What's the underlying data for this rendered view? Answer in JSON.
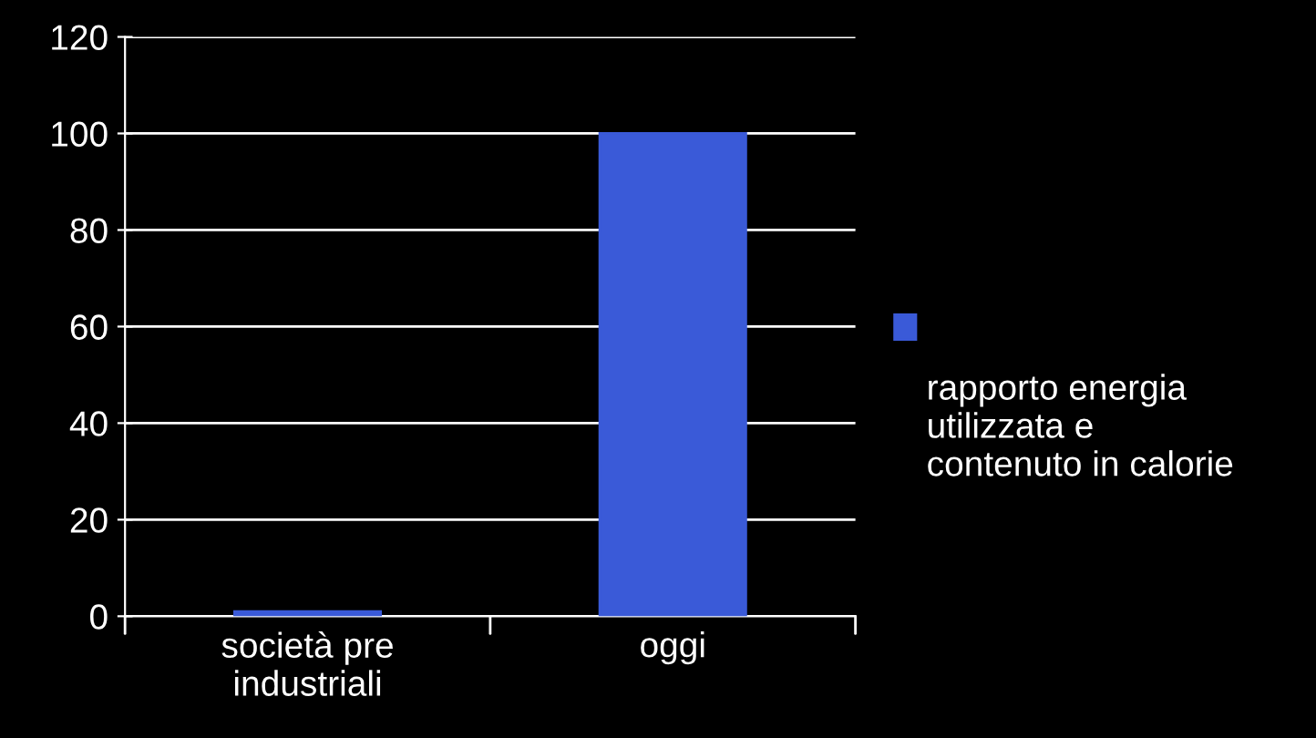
{
  "chart_data": {
    "type": "bar",
    "categories": [
      "società pre\nindustriali",
      "oggi"
    ],
    "series": [
      {
        "name": "rapporto energia\nutilizzata e\ncontenuto in calorie",
        "color": "#3a5ad8",
        "values": [
          1,
          100
        ]
      }
    ],
    "ylim": [
      0,
      120
    ],
    "yticks": [
      0,
      20,
      40,
      60,
      80,
      100,
      120
    ],
    "grid": "y",
    "legend": "right"
  }
}
